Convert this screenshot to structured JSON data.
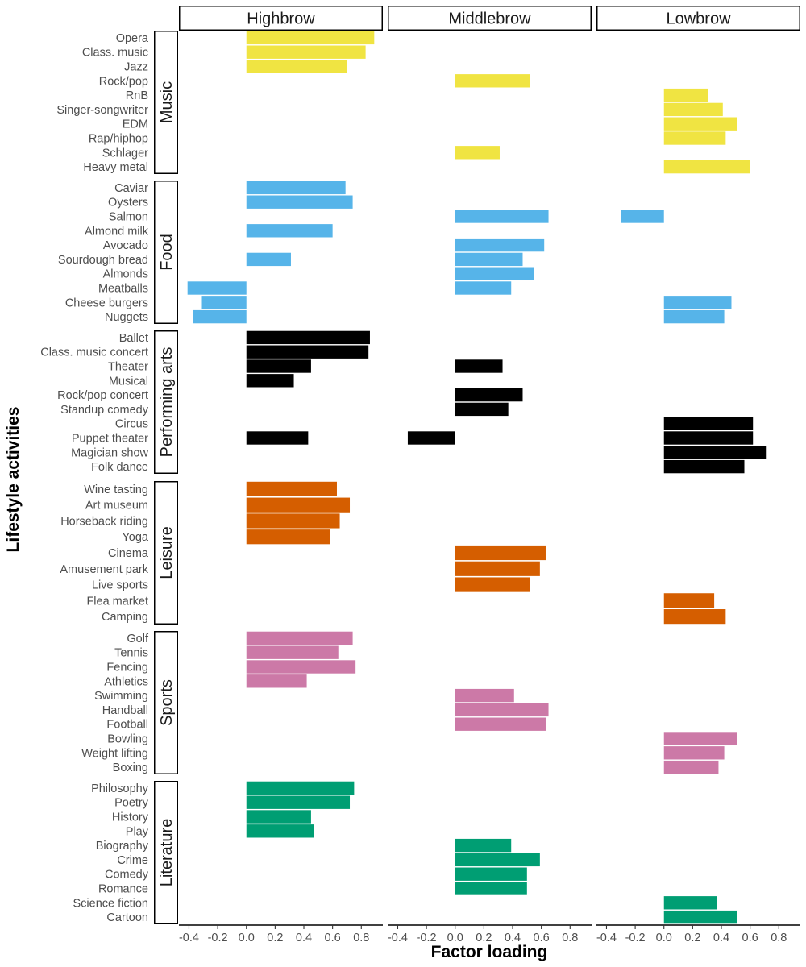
{
  "chart_data": {
    "type": "bar",
    "orientation": "horizontal",
    "facets": [
      "Highbrow",
      "Middlebrow",
      "Lowbrow"
    ],
    "xlabel": "Factor loading",
    "ylabel": "Lifestyle activities",
    "xlim": [
      -0.47,
      0.95
    ],
    "xticks": [
      -0.4,
      -0.2,
      0.0,
      0.2,
      0.4,
      0.6,
      0.8
    ],
    "xtick_labels": [
      "-0.4",
      "-0.2",
      "0.0",
      "0.2",
      "0.4",
      "0.6",
      "0.8"
    ],
    "grid": false,
    "groups": [
      {
        "name": "Music",
        "color": "#F0E442",
        "items": [
          {
            "label": "Opera",
            "values": [
              0.89,
              null,
              null
            ]
          },
          {
            "label": "Class. music",
            "values": [
              0.83,
              null,
              null
            ]
          },
          {
            "label": "Jazz",
            "values": [
              0.7,
              null,
              null
            ]
          },
          {
            "label": "Rock/pop",
            "values": [
              null,
              0.52,
              null
            ]
          },
          {
            "label": "RnB",
            "values": [
              null,
              null,
              0.31
            ]
          },
          {
            "label": "Singer-songwriter",
            "values": [
              null,
              null,
              0.41
            ]
          },
          {
            "label": "EDM",
            "values": [
              null,
              null,
              0.51
            ]
          },
          {
            "label": "Rap/hiphop",
            "values": [
              null,
              null,
              0.43
            ]
          },
          {
            "label": "Schlager",
            "values": [
              null,
              0.31,
              null
            ]
          },
          {
            "label": "Heavy metal",
            "values": [
              null,
              null,
              0.6
            ]
          }
        ]
      },
      {
        "name": "Food",
        "color": "#56B4E9",
        "items": [
          {
            "label": "Caviar",
            "values": [
              0.69,
              null,
              null
            ]
          },
          {
            "label": "Oysters",
            "values": [
              0.74,
              null,
              null
            ]
          },
          {
            "label": "Salmon",
            "values": [
              null,
              0.65,
              -0.3
            ]
          },
          {
            "label": "Almond milk",
            "values": [
              0.6,
              null,
              null
            ]
          },
          {
            "label": "Avocado",
            "values": [
              null,
              0.62,
              null
            ]
          },
          {
            "label": "Sourdough bread",
            "values": [
              0.31,
              0.47,
              null
            ]
          },
          {
            "label": "Almonds",
            "values": [
              null,
              0.55,
              null
            ]
          },
          {
            "label": "Meatballs",
            "values": [
              -0.41,
              0.39,
              null
            ]
          },
          {
            "label": "Cheese burgers",
            "values": [
              -0.31,
              null,
              0.47
            ]
          },
          {
            "label": "Nuggets",
            "values": [
              -0.37,
              null,
              0.42
            ]
          }
        ]
      },
      {
        "name": "Performing arts",
        "color": "#000000",
        "items": [
          {
            "label": "Ballet",
            "values": [
              0.86,
              null,
              null
            ]
          },
          {
            "label": "Class. music concert",
            "values": [
              0.85,
              null,
              null
            ]
          },
          {
            "label": "Theater",
            "values": [
              0.45,
              0.33,
              null
            ]
          },
          {
            "label": "Musical",
            "values": [
              0.33,
              null,
              null
            ]
          },
          {
            "label": "Rock/pop concert",
            "values": [
              null,
              0.47,
              null
            ]
          },
          {
            "label": "Standup comedy",
            "values": [
              null,
              0.37,
              null
            ]
          },
          {
            "label": "Circus",
            "values": [
              null,
              null,
              0.62
            ]
          },
          {
            "label": "Puppet theater",
            "values": [
              0.43,
              -0.33,
              0.62
            ]
          },
          {
            "label": "Magician show",
            "values": [
              null,
              null,
              0.71
            ]
          },
          {
            "label": "Folk dance",
            "values": [
              null,
              null,
              0.56
            ]
          }
        ]
      },
      {
        "name": "Leisure",
        "color": "#D55E00",
        "items": [
          {
            "label": "Wine tasting",
            "values": [
              0.63,
              null,
              null
            ]
          },
          {
            "label": "Art museum",
            "values": [
              0.72,
              null,
              null
            ]
          },
          {
            "label": "Horseback riding",
            "values": [
              0.65,
              null,
              null
            ]
          },
          {
            "label": "Yoga",
            "values": [
              0.58,
              null,
              null
            ]
          },
          {
            "label": "Cinema",
            "values": [
              null,
              0.63,
              null
            ]
          },
          {
            "label": "Amusement park",
            "values": [
              null,
              0.59,
              null
            ]
          },
          {
            "label": "Live sports",
            "values": [
              null,
              0.52,
              null
            ]
          },
          {
            "label": "Flea market",
            "values": [
              null,
              null,
              0.35
            ]
          },
          {
            "label": "Camping",
            "values": [
              null,
              null,
              0.43
            ]
          }
        ]
      },
      {
        "name": "Sports",
        "color": "#CC79A7",
        "items": [
          {
            "label": "Golf",
            "values": [
              0.74,
              null,
              null
            ]
          },
          {
            "label": "Tennis",
            "values": [
              0.64,
              null,
              null
            ]
          },
          {
            "label": "Fencing",
            "values": [
              0.76,
              null,
              null
            ]
          },
          {
            "label": "Athletics",
            "values": [
              0.42,
              null,
              null
            ]
          },
          {
            "label": "Swimming",
            "values": [
              null,
              0.41,
              null
            ]
          },
          {
            "label": "Handball",
            "values": [
              null,
              0.65,
              null
            ]
          },
          {
            "label": "Football",
            "values": [
              null,
              0.63,
              null
            ]
          },
          {
            "label": "Bowling",
            "values": [
              null,
              null,
              0.51
            ]
          },
          {
            "label": "Weight lifting",
            "values": [
              null,
              null,
              0.42
            ]
          },
          {
            "label": "Boxing",
            "values": [
              null,
              null,
              0.38
            ]
          }
        ]
      },
      {
        "name": "Literature",
        "color": "#009E73",
        "items": [
          {
            "label": "Philosophy",
            "values": [
              0.75,
              null,
              null
            ]
          },
          {
            "label": "Poetry",
            "values": [
              0.72,
              null,
              null
            ]
          },
          {
            "label": "History",
            "values": [
              0.45,
              null,
              null
            ]
          },
          {
            "label": "Play",
            "values": [
              0.47,
              null,
              null
            ]
          },
          {
            "label": "Biography",
            "values": [
              null,
              0.39,
              null
            ]
          },
          {
            "label": "Crime",
            "values": [
              null,
              0.59,
              null
            ]
          },
          {
            "label": "Comedy",
            "values": [
              null,
              0.5,
              null
            ]
          },
          {
            "label": "Romance",
            "values": [
              null,
              0.5,
              null
            ]
          },
          {
            "label": "Science fiction",
            "values": [
              null,
              null,
              0.37
            ]
          },
          {
            "label": "Cartoon",
            "values": [
              null,
              null,
              0.51
            ]
          }
        ]
      }
    ]
  }
}
